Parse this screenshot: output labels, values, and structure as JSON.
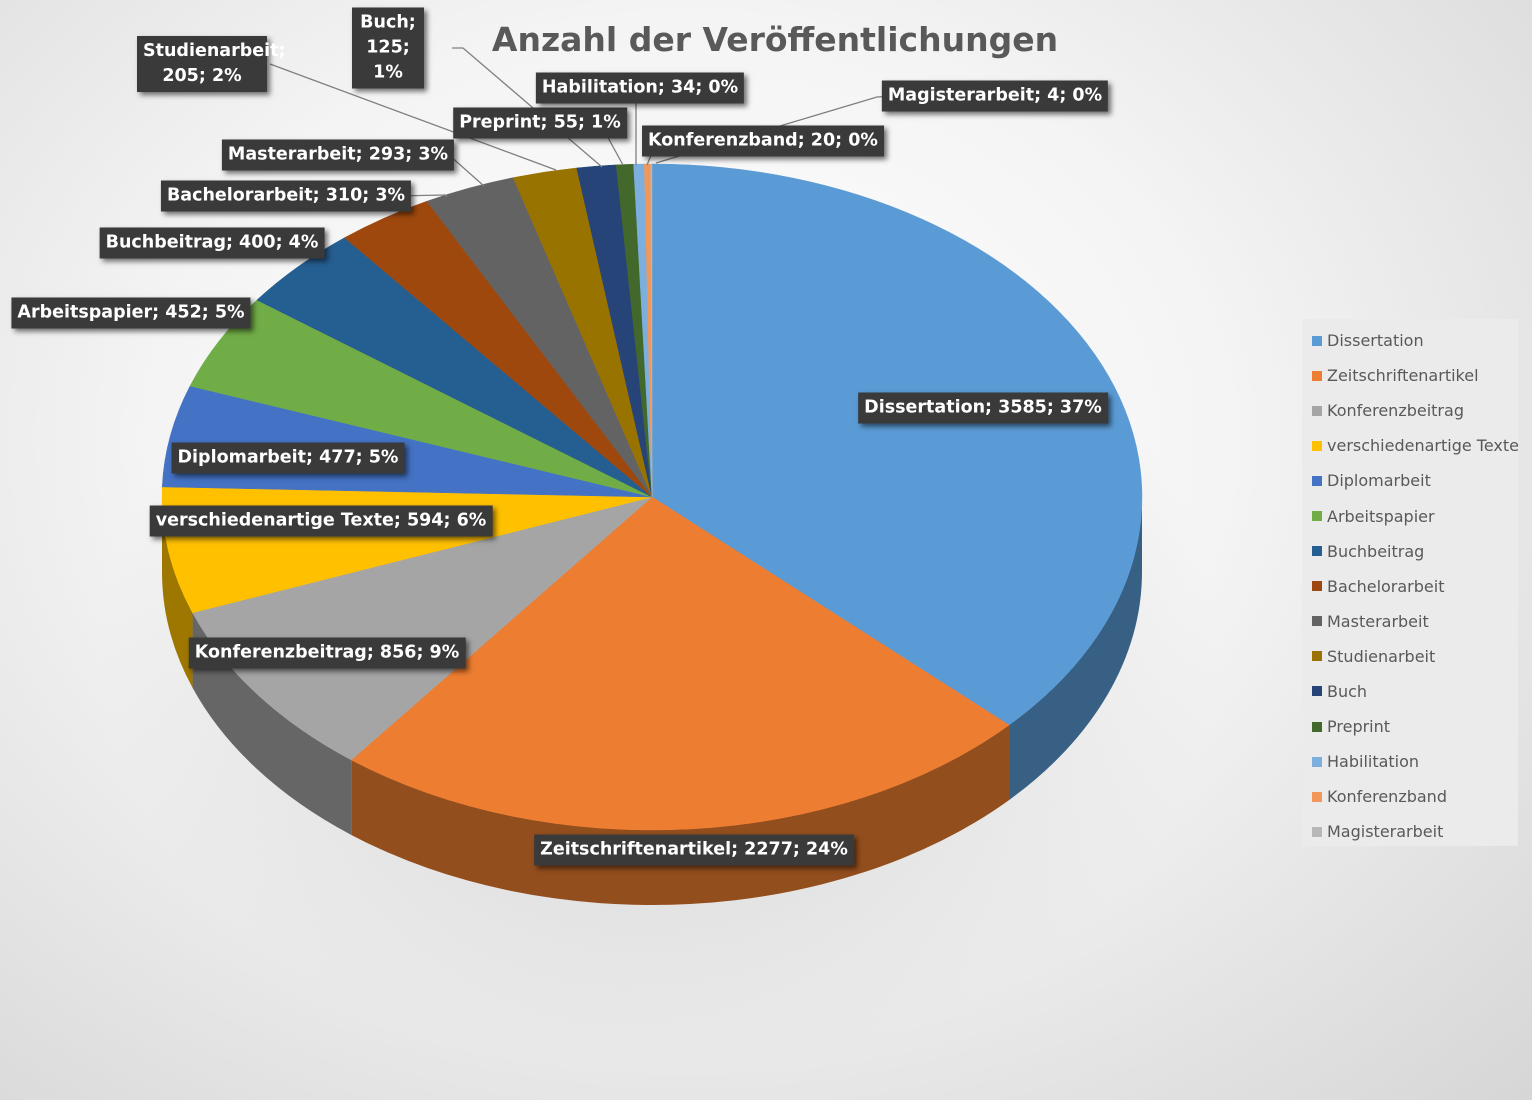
{
  "chart_data": {
    "type": "pie",
    "title": "Anzahl der Veröffentlichungen",
    "legend_position": "right",
    "slices": [
      {
        "name": "Dissertation",
        "value": 3585,
        "percent": "37%",
        "color": "#5b9bd5",
        "label": "Dissertation; 3585; 37%"
      },
      {
        "name": "Zeitschriftenartikel",
        "value": 2277,
        "percent": "24%",
        "color": "#ed7d31",
        "label": "Zeitschriftenartikel; 2277; 24%"
      },
      {
        "name": "Konferenzbeitrag",
        "value": 856,
        "percent": "9%",
        "color": "#a5a5a5",
        "label": "Konferenzbeitrag; 856; 9%"
      },
      {
        "name": "verschiedenartige Texte",
        "value": 594,
        "percent": "6%",
        "color": "#ffc000",
        "label": "verschiedenartige Texte; 594; 6%"
      },
      {
        "name": "Diplomarbeit",
        "value": 477,
        "percent": "5%",
        "color": "#4472c4",
        "label": "Diplomarbeit; 477; 5%"
      },
      {
        "name": "Arbeitspapier",
        "value": 452,
        "percent": "5%",
        "color": "#70ad47",
        "label": "Arbeitspapier; 452; 5%"
      },
      {
        "name": "Buchbeitrag",
        "value": 400,
        "percent": "4%",
        "color": "#255e91",
        "label": "Buchbeitrag; 400; 4%"
      },
      {
        "name": "Bachelorarbeit",
        "value": 310,
        "percent": "3%",
        "color": "#9e480e",
        "label": "Bachelorarbeit; 310; 3%"
      },
      {
        "name": "Masterarbeit",
        "value": 293,
        "percent": "3%",
        "color": "#636363",
        "label": "Masterarbeit; 293; 3%"
      },
      {
        "name": "Studienarbeit",
        "value": 205,
        "percent": "2%",
        "color": "#997300",
        "label": "Studienarbeit; 205; 2%"
      },
      {
        "name": "Buch",
        "value": 125,
        "percent": "1%",
        "color": "#264478",
        "label": "Buch; 125; 1%"
      },
      {
        "name": "Preprint",
        "value": 55,
        "percent": "1%",
        "color": "#43682b",
        "label": "Preprint; 55; 1%"
      },
      {
        "name": "Habilitation",
        "value": 34,
        "percent": "0%",
        "color": "#7cafdd",
        "label": "Habilitation; 34; 0%"
      },
      {
        "name": "Konferenzband",
        "value": 20,
        "percent": "0%",
        "color": "#f1975a",
        "label": "Konferenzband; 20; 0%"
      },
      {
        "name": "Magisterarbeit",
        "value": 4,
        "percent": "0%",
        "color": "#b7b7b7",
        "label": "Magisterarbeit; 4; 0%"
      }
    ]
  }
}
